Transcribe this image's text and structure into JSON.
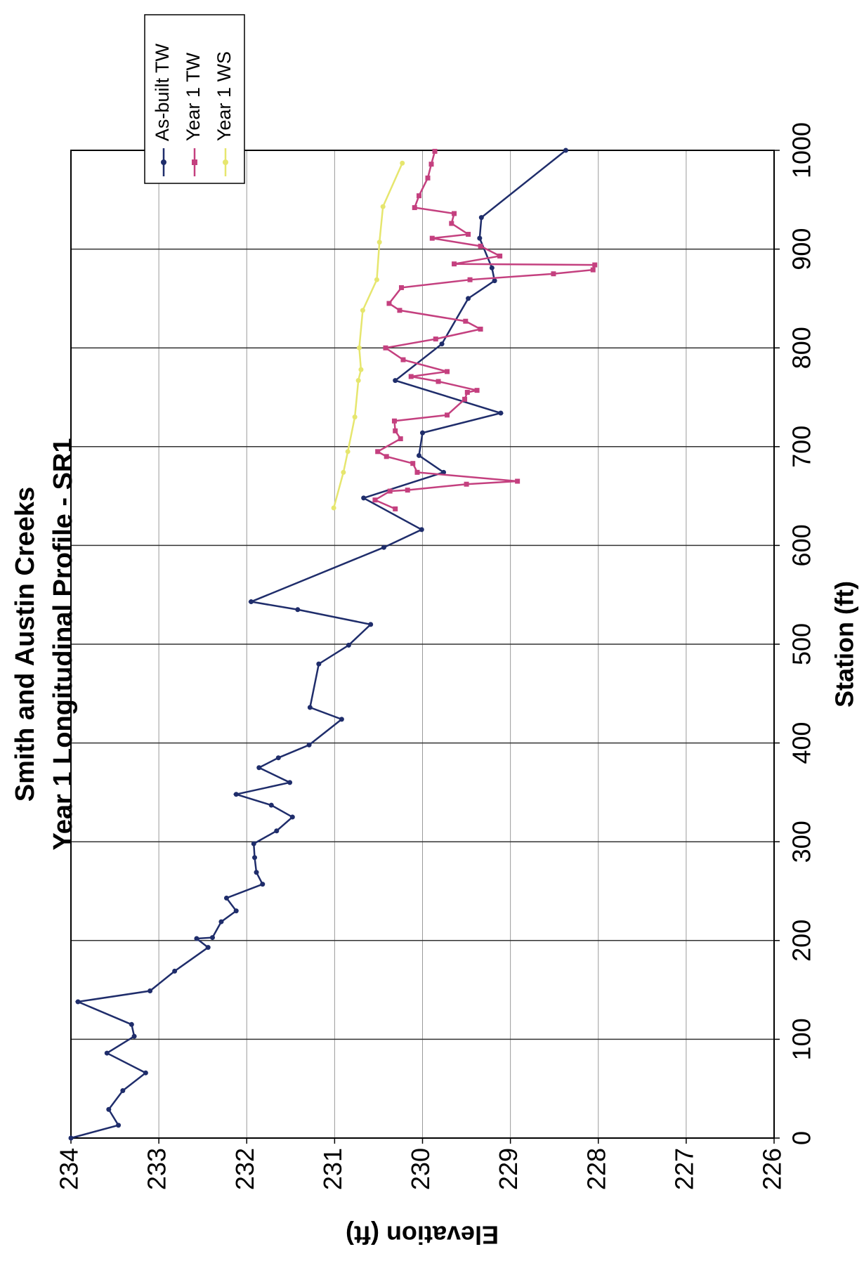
{
  "chart_data": {
    "type": "line",
    "title": "Smith and Austin Creeks",
    "subtitle": "Year 1 Longitudinal Profile - SR1",
    "x_label": "Station (ft)",
    "y_label": "Elevation (ft)",
    "xlim": [
      0,
      1000
    ],
    "xticks": [
      0,
      100,
      200,
      300,
      400,
      500,
      600,
      700,
      800,
      900,
      1000
    ],
    "ylim": [
      226,
      234
    ],
    "yticks": [
      226,
      227,
      228,
      229,
      230,
      231,
      232,
      233,
      234
    ],
    "grid": true,
    "legend": "top-right",
    "series": [
      {
        "name": "As-built TW",
        "color": "#1f2d6b",
        "marker": "circle",
        "x": [
          0,
          13,
          29,
          48,
          66,
          86,
          103,
          115,
          138,
          149,
          169,
          193,
          202,
          203,
          219,
          230,
          243,
          257,
          269,
          284,
          298,
          311,
          325,
          337,
          348,
          360,
          375,
          385,
          398,
          424,
          436,
          480,
          499,
          520,
          535,
          543,
          598,
          616,
          648,
          674,
          691,
          714,
          734,
          767,
          804,
          850,
          868,
          881,
          911,
          932,
          1000
        ],
        "values": [
          234.0,
          233.46,
          233.57,
          233.41,
          233.15,
          233.59,
          233.28,
          233.31,
          233.92,
          233.1,
          232.82,
          232.44,
          232.57,
          232.39,
          232.29,
          232.12,
          232.23,
          231.82,
          231.89,
          231.91,
          231.92,
          231.66,
          231.48,
          231.72,
          232.12,
          231.51,
          231.86,
          231.64,
          231.29,
          230.92,
          231.28,
          231.18,
          230.84,
          230.59,
          231.42,
          231.95,
          230.44,
          230.01,
          230.67,
          229.76,
          230.04,
          230.0,
          229.11,
          230.31,
          229.78,
          229.48,
          229.18,
          229.21,
          229.35,
          229.33,
          228.37
        ]
      },
      {
        "name": "Year 1 TW",
        "color": "#c4407f",
        "marker": "square",
        "x": [
          637,
          646,
          655,
          656,
          662,
          665,
          674,
          683,
          690,
          695,
          708,
          716,
          726,
          732,
          748,
          755,
          757,
          766,
          771,
          776,
          788,
          800,
          809,
          819,
          827,
          838,
          845,
          861,
          869,
          875,
          879,
          884,
          885,
          893,
          903,
          911,
          915,
          926,
          936,
          942,
          954,
          972,
          986,
          999
        ],
        "values": [
          230.31,
          230.54,
          230.37,
          230.17,
          229.5,
          228.92,
          230.06,
          230.11,
          230.41,
          230.51,
          230.25,
          230.31,
          230.32,
          229.72,
          229.52,
          229.49,
          229.38,
          229.82,
          230.13,
          229.72,
          230.22,
          230.42,
          229.85,
          229.34,
          229.51,
          230.26,
          230.38,
          230.24,
          229.46,
          228.51,
          228.06,
          228.04,
          229.64,
          229.12,
          229.34,
          229.89,
          229.48,
          229.67,
          229.64,
          230.09,
          230.04,
          229.94,
          229.9,
          229.86
        ]
      },
      {
        "name": "Year 1 WS",
        "color": "#e6e66e",
        "marker": "circle",
        "x": [
          638,
          674,
          695,
          730,
          767,
          778,
          800,
          838,
          869,
          907,
          943,
          987
        ],
        "values": [
          231.01,
          230.9,
          230.85,
          230.77,
          230.73,
          230.7,
          230.72,
          230.68,
          230.52,
          230.49,
          230.45,
          230.23
        ]
      }
    ]
  }
}
